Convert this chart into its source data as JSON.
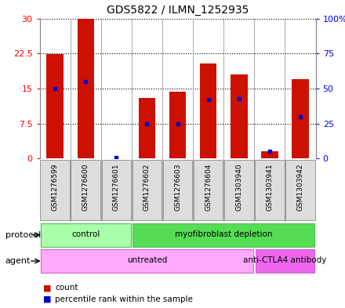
{
  "title": "GDS5822 / ILMN_1252935",
  "samples": [
    "GSM1276599",
    "GSM1276600",
    "GSM1276601",
    "GSM1276602",
    "GSM1276603",
    "GSM1276604",
    "GSM1303940",
    "GSM1303941",
    "GSM1303942"
  ],
  "counts": [
    22.3,
    30.0,
    0.05,
    13.0,
    14.3,
    20.3,
    18.0,
    1.5,
    17.0
  ],
  "percentiles": [
    50,
    55,
    1,
    25,
    25,
    42,
    43,
    5,
    30
  ],
  "bar_color": "#cc1100",
  "dot_color": "#0000cc",
  "ylim_left": [
    0,
    30
  ],
  "ylim_right": [
    0,
    100
  ],
  "yticks_left": [
    0,
    7.5,
    15,
    22.5,
    30
  ],
  "ytick_labels_left": [
    "0",
    "7.5",
    "15",
    "22.5",
    "30"
  ],
  "yticks_right": [
    0,
    25,
    50,
    75,
    100
  ],
  "ytick_labels_right": [
    "0",
    "25",
    "50",
    "75",
    "100%"
  ],
  "protocol_groups": [
    {
      "label": "control",
      "start": 0,
      "end": 3,
      "color": "#aaffaa",
      "edge": "#55bb55"
    },
    {
      "label": "myofibroblast depletion",
      "start": 3,
      "end": 9,
      "color": "#55dd55",
      "edge": "#55bb55"
    }
  ],
  "agent_groups": [
    {
      "label": "untreated",
      "start": 0,
      "end": 7,
      "color": "#ffaaff",
      "edge": "#cc66cc"
    },
    {
      "label": "anti-CTLA4 antibody",
      "start": 7,
      "end": 9,
      "color": "#ee66ee",
      "edge": "#cc66cc"
    }
  ],
  "legend_count_label": "count",
  "legend_pct_label": "percentile rank within the sample",
  "bar_width": 0.55,
  "bg_color": "#ffffff",
  "plot_bg_color": "#ffffff",
  "cell_color": "#dddddd",
  "cell_edge": "#999999"
}
